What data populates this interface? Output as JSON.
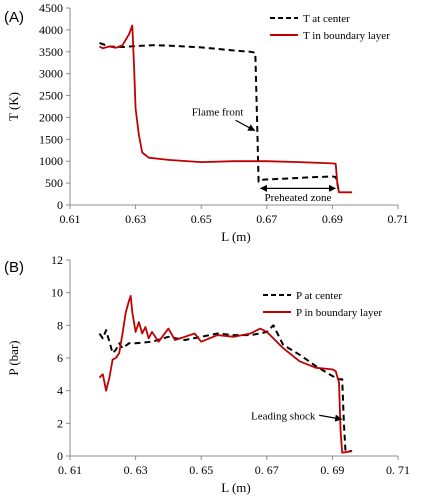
{
  "colors": {
    "center": "#000000",
    "boundary": "#c00000"
  },
  "chart_data": [
    {
      "type": "line",
      "panel_label": "(A)",
      "xlabel": "L (m)",
      "ylabel": "T (K)",
      "xlim": [
        0.61,
        0.71
      ],
      "ylim": [
        0,
        4500
      ],
      "xticks": [
        0.61,
        0.63,
        0.65,
        0.67,
        0.69,
        0.71
      ],
      "xtick_labels": [
        "0.61",
        "0.63",
        "0.65",
        "0.67",
        "0.69",
        "0.71"
      ],
      "yticks": [
        0,
        500,
        1000,
        1500,
        2000,
        2500,
        3000,
        3500,
        4000,
        4500
      ],
      "ytick_labels": [
        "0",
        "500",
        "1000",
        "1500",
        "2000",
        "2500",
        "3000",
        "3500",
        "4000",
        "4500"
      ],
      "legend_position": "top-right",
      "series": [
        {
          "name": "T at center",
          "style": "dashed",
          "x": [
            0.619,
            0.622,
            0.626,
            0.63,
            0.635,
            0.64,
            0.65,
            0.66,
            0.665,
            0.6665,
            0.667,
            0.6675,
            0.669,
            0.675,
            0.68,
            0.685,
            0.69,
            0.691,
            0.6915,
            0.692
          ],
          "y": [
            3700,
            3620,
            3610,
            3630,
            3650,
            3640,
            3600,
            3530,
            3500,
            3480,
            2000,
            530,
            580,
            600,
            620,
            640,
            650,
            640,
            500,
            280
          ]
        },
        {
          "name": "T in boundary layer",
          "style": "solid",
          "x": [
            0.619,
            0.62,
            0.622,
            0.624,
            0.626,
            0.628,
            0.629,
            0.6295,
            0.63,
            0.631,
            0.632,
            0.634,
            0.64,
            0.65,
            0.66,
            0.67,
            0.68,
            0.69,
            0.691,
            0.6915,
            0.692,
            0.694,
            0.696
          ],
          "y": [
            3620,
            3580,
            3620,
            3590,
            3650,
            3900,
            4100,
            3200,
            2200,
            1600,
            1200,
            1080,
            1030,
            980,
            1000,
            1000,
            980,
            950,
            940,
            500,
            290,
            290,
            290
          ]
        }
      ],
      "annotations": [
        {
          "text": "Flame front",
          "x": 0.655,
          "y": 2050,
          "arrow_to": [
            0.6663,
            1700
          ]
        },
        {
          "text": "Preheated zone",
          "x": 0.6795,
          "y": 90,
          "double_arrow": [
            0.6675,
            0.6915
          ],
          "arrow_y": 380
        }
      ]
    },
    {
      "type": "line",
      "panel_label": "(B)",
      "xlabel": "L (m)",
      "ylabel": "P (bar)",
      "xlim": [
        0.61,
        0.71
      ],
      "ylim": [
        0,
        12
      ],
      "xticks": [
        0.61,
        0.63,
        0.65,
        0.67,
        0.69,
        0.71
      ],
      "xtick_labels": [
        "0. 61",
        "0. 63",
        "0. 65",
        "0. 67",
        "0. 69",
        "0. 71"
      ],
      "yticks": [
        0,
        2,
        4,
        6,
        8,
        10,
        12
      ],
      "ytick_labels": [
        "0",
        "2",
        "4",
        "6",
        "8",
        "10",
        "12"
      ],
      "legend_position": "top-right",
      "series": [
        {
          "name": "P at center",
          "style": "dashed",
          "x": [
            0.619,
            0.62,
            0.621,
            0.622,
            0.623,
            0.624,
            0.625,
            0.626,
            0.628,
            0.63,
            0.635,
            0.64,
            0.645,
            0.65,
            0.655,
            0.66,
            0.665,
            0.668,
            0.67,
            0.672,
            0.675,
            0.68,
            0.685,
            0.69,
            0.692,
            0.693,
            0.6935,
            0.694,
            0.696
          ],
          "y": [
            7.5,
            7.2,
            7.7,
            7.0,
            6.3,
            6.5,
            6.9,
            6.6,
            6.9,
            6.9,
            7.0,
            7.3,
            7.1,
            7.3,
            7.5,
            7.4,
            7.4,
            7.5,
            7.6,
            8.0,
            6.8,
            6.2,
            5.5,
            4.9,
            4.7,
            4.7,
            2.0,
            0.3,
            0.3
          ]
        },
        {
          "name": "P in boundary layer",
          "style": "solid",
          "x": [
            0.619,
            0.62,
            0.621,
            0.622,
            0.623,
            0.624,
            0.625,
            0.626,
            0.627,
            0.628,
            0.6285,
            0.629,
            0.63,
            0.631,
            0.632,
            0.633,
            0.634,
            0.635,
            0.637,
            0.64,
            0.642,
            0.645,
            0.648,
            0.65,
            0.655,
            0.66,
            0.665,
            0.668,
            0.67,
            0.672,
            0.675,
            0.68,
            0.685,
            0.69,
            0.691,
            0.692,
            0.6925,
            0.693,
            0.696
          ],
          "y": [
            4.8,
            5.0,
            4.0,
            4.8,
            5.9,
            6.0,
            6.3,
            7.5,
            8.8,
            9.5,
            9.8,
            8.8,
            7.6,
            8.2,
            7.5,
            7.9,
            7.2,
            7.6,
            7.0,
            7.8,
            7.1,
            7.3,
            7.5,
            7.0,
            7.4,
            7.3,
            7.5,
            7.8,
            7.6,
            7.2,
            6.6,
            5.8,
            5.4,
            5.3,
            5.2,
            4.5,
            1.5,
            0.2,
            0.3
          ]
        }
      ],
      "annotations": [
        {
          "text": "Leading shock",
          "x": 0.675,
          "y": 2.25,
          "arrow_to": [
            0.6928,
            2.25
          ]
        }
      ]
    }
  ]
}
